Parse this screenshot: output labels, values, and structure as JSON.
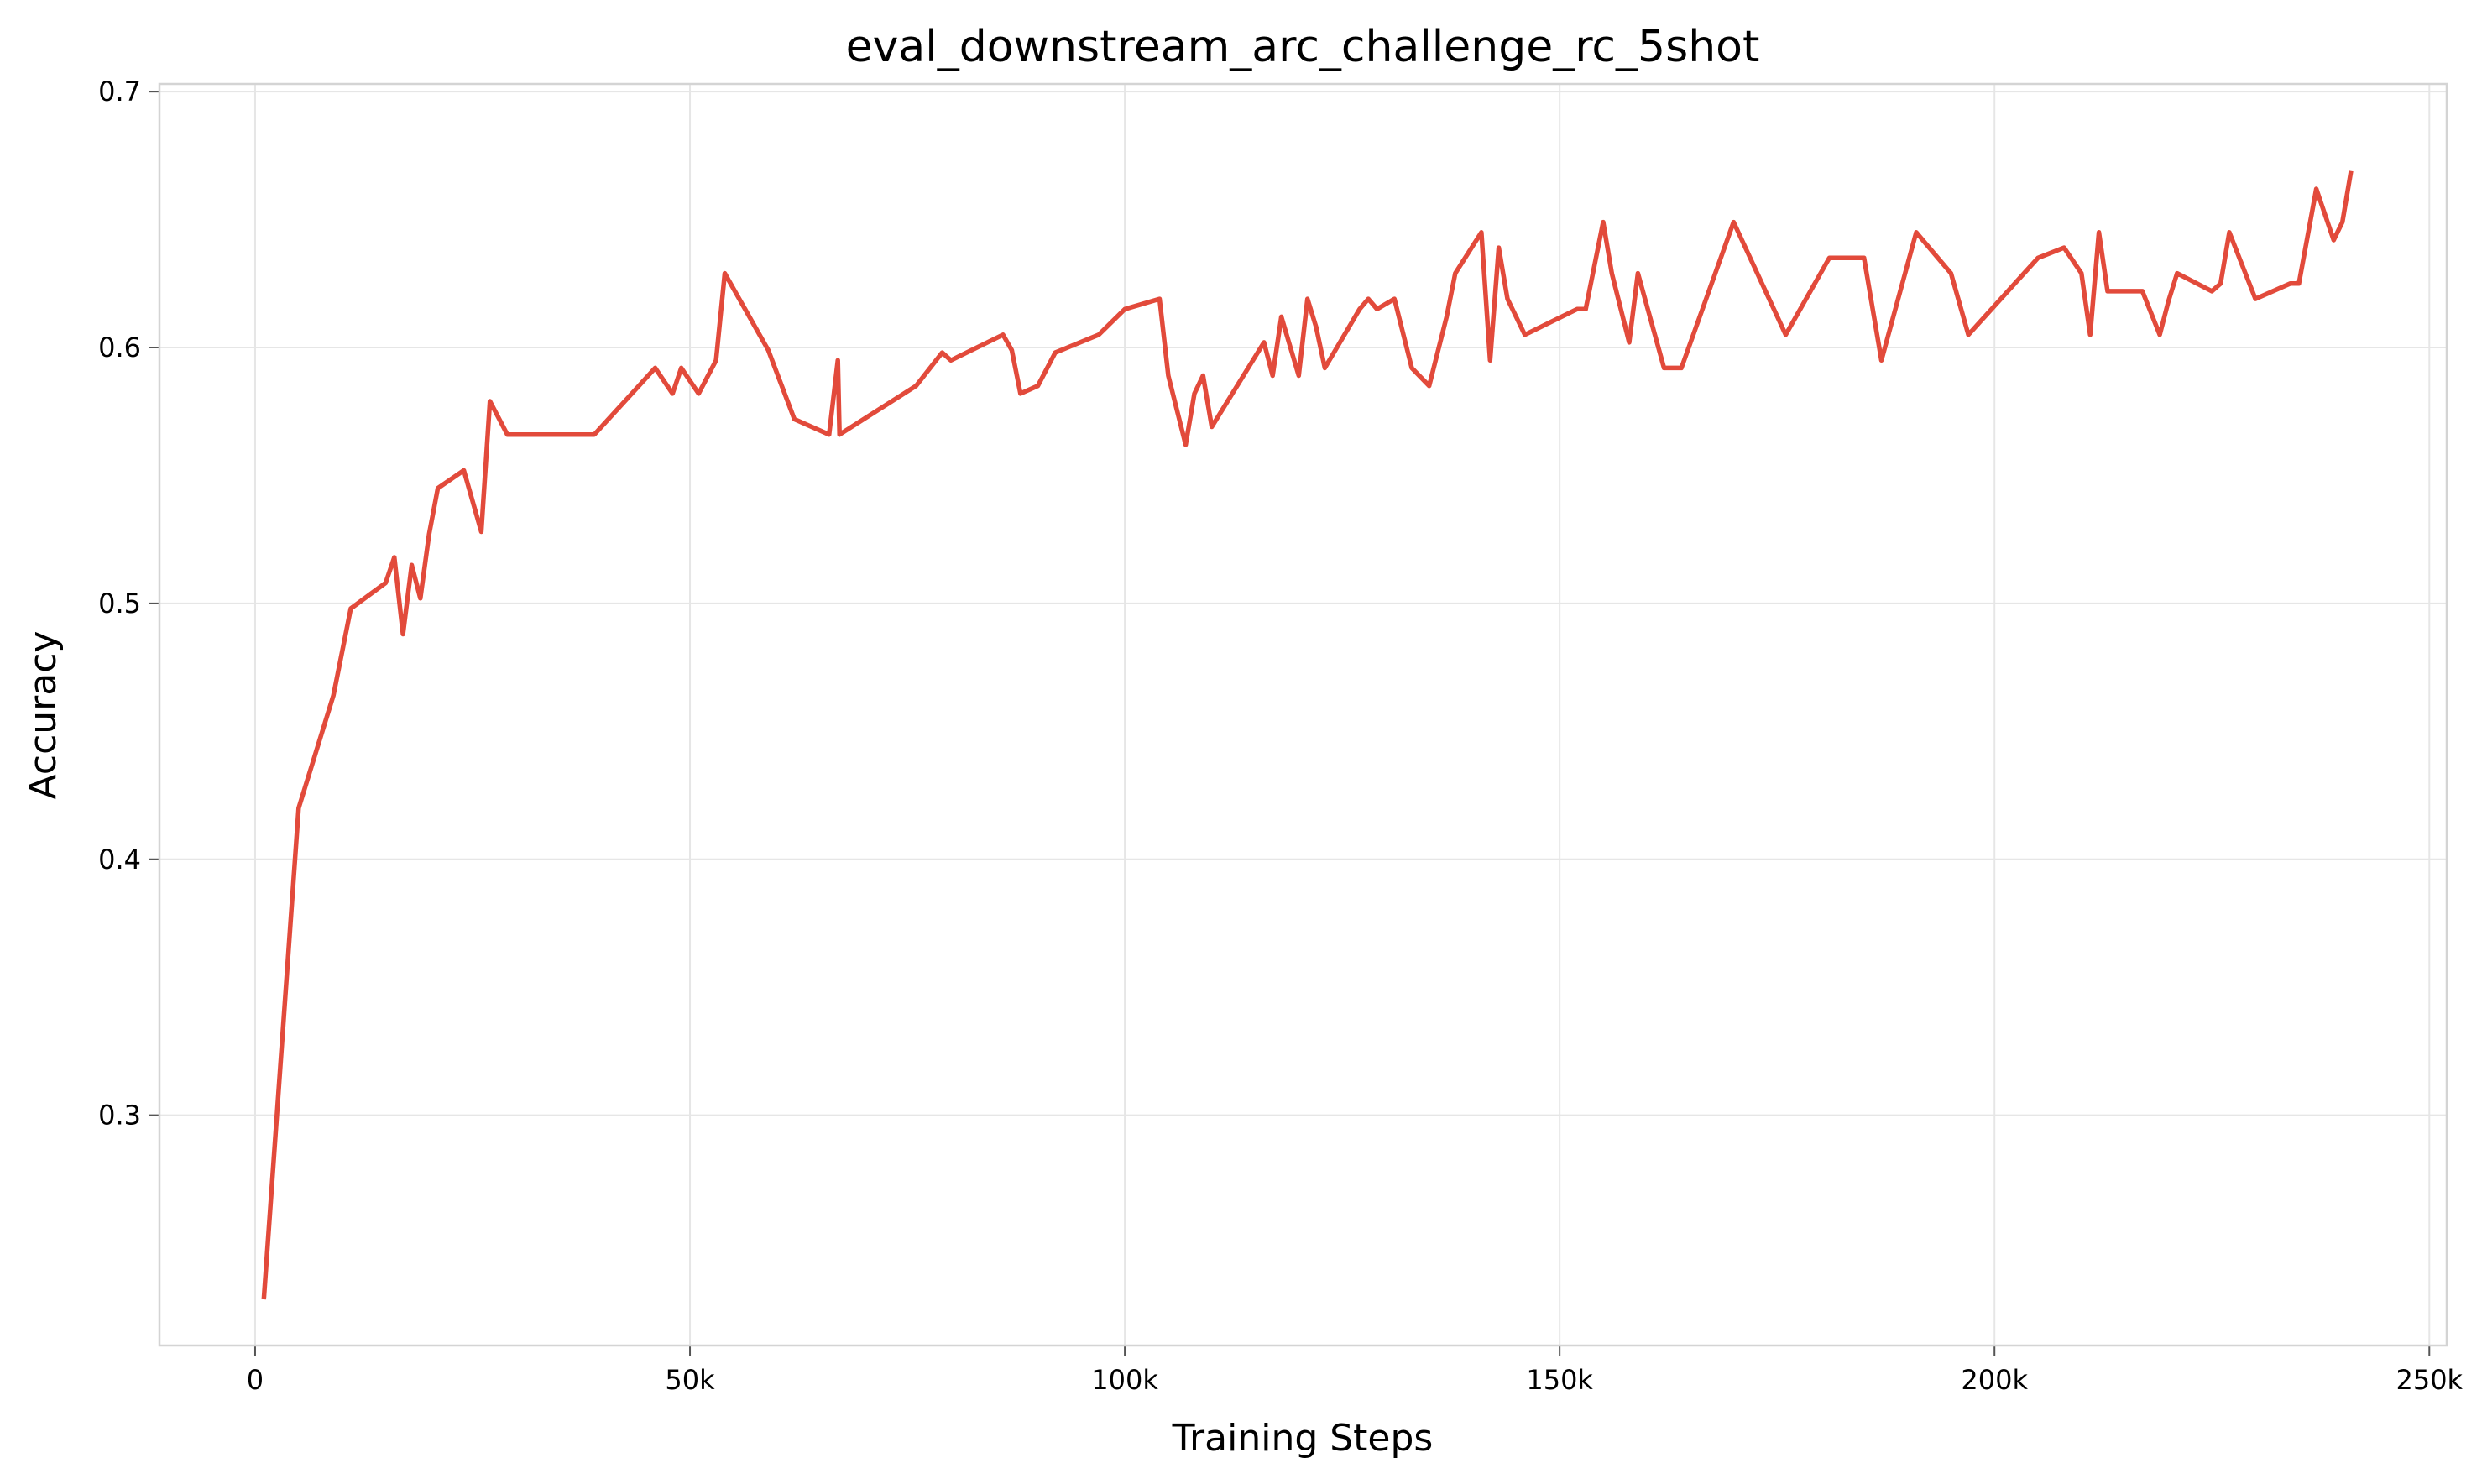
{
  "chart_data": {
    "type": "line",
    "title": "eval_downstream_arc_challenge_rc_5shot",
    "xlabel": "Training Steps",
    "ylabel": "Accuracy",
    "xlim": [
      -11000,
      252000
    ],
    "ylim": [
      0.21,
      0.703
    ],
    "grid": true,
    "legend": "none",
    "xticks": [
      {
        "value": 0,
        "label": "0"
      },
      {
        "value": 50000,
        "label": "50k"
      },
      {
        "value": 100000,
        "label": "100k"
      },
      {
        "value": 150000,
        "label": "150k"
      },
      {
        "value": 200000,
        "label": "200k"
      },
      {
        "value": 250000,
        "label": "250k"
      }
    ],
    "yticks": [
      {
        "value": 0.3,
        "label": "0.3"
      },
      {
        "value": 0.4,
        "label": "0.4"
      },
      {
        "value": 0.5,
        "label": "0.5"
      },
      {
        "value": 0.6,
        "label": "0.6"
      },
      {
        "value": 0.7,
        "label": "0.7"
      }
    ],
    "series": [
      {
        "color": "#e24a3b",
        "x": [
          1000,
          5000,
          9000,
          11000,
          15000,
          16000,
          17000,
          18000,
          19000,
          20000,
          21000,
          24000,
          26000,
          27000,
          29000,
          39000,
          46000,
          48000,
          49000,
          51000,
          53000,
          54000,
          59000,
          62000,
          66000,
          67000,
          67200,
          76000,
          79000,
          80000,
          86000,
          87000,
          88000,
          90000,
          92000,
          97000,
          100000,
          104000,
          105000,
          107000,
          108000,
          109000,
          110000,
          116000,
          117000,
          118000,
          120000,
          121000,
          122000,
          123000,
          127000,
          128000,
          129000,
          131000,
          133000,
          135000,
          137000,
          138000,
          141000,
          142000,
          143000,
          144000,
          146000,
          152000,
          153000,
          155000,
          156000,
          158000,
          159000,
          162000,
          164000,
          170000,
          176000,
          181000,
          185000,
          187000,
          191000,
          195000,
          197000,
          205000,
          208000,
          210000,
          211000,
          212000,
          213000,
          217000,
          219000,
          220000,
          221000,
          225000,
          226000,
          227000,
          230000,
          234000,
          235000,
          237000,
          239000,
          240000,
          241000
        ],
        "y": [
          0.228,
          0.42,
          0.464,
          0.498,
          0.508,
          0.518,
          0.488,
          0.515,
          0.502,
          0.527,
          0.545,
          0.552,
          0.528,
          0.579,
          0.566,
          0.566,
          0.592,
          0.582,
          0.592,
          0.582,
          0.595,
          0.629,
          0.599,
          0.572,
          0.566,
          0.595,
          0.566,
          0.585,
          0.598,
          0.595,
          0.605,
          0.599,
          0.582,
          0.585,
          0.598,
          0.605,
          0.615,
          0.619,
          0.589,
          0.562,
          0.582,
          0.589,
          0.569,
          0.602,
          0.589,
          0.612,
          0.589,
          0.619,
          0.608,
          0.592,
          0.615,
          0.619,
          0.615,
          0.619,
          0.592,
          0.585,
          0.612,
          0.629,
          0.645,
          0.595,
          0.639,
          0.619,
          0.605,
          0.615,
          0.615,
          0.649,
          0.629,
          0.602,
          0.629,
          0.592,
          0.592,
          0.649,
          0.605,
          0.635,
          0.635,
          0.595,
          0.645,
          0.629,
          0.605,
          0.635,
          0.639,
          0.629,
          0.605,
          0.645,
          0.622,
          0.622,
          0.605,
          0.618,
          0.629,
          0.622,
          0.625,
          0.645,
          0.619,
          0.625,
          0.625,
          0.662,
          0.642,
          0.649,
          0.669
        ]
      }
    ]
  }
}
